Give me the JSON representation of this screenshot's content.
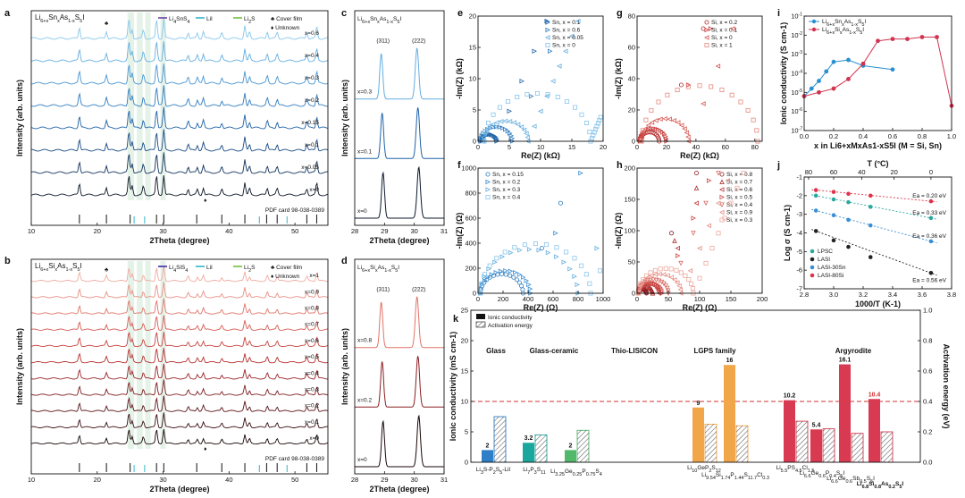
{
  "chart_data": [
    {
      "panel": "a",
      "type": "line",
      "title": "Li6+xSnxAs1-xS5I",
      "legend": [
        "Li4SnS4",
        "LiI",
        "Li2S",
        "Cover film",
        "Unknown"
      ],
      "xlabel": "2Theta (degree)",
      "ylabel": "Intensity (arb. units)",
      "xlim": [
        10,
        55
      ],
      "xticks": [
        10,
        20,
        30,
        40,
        50
      ],
      "series_labels": [
        "x=0",
        "x=0.05",
        "x=0.1",
        "x=0.15",
        "x=0.2",
        "x=0.3",
        "x=0.4",
        "x=0.6"
      ],
      "reference": "PDF card 98-038-0389",
      "colors": [
        "#0a1626",
        "#10335e",
        "#174a86",
        "#1f62a8",
        "#2f7cc0",
        "#4795d2",
        "#63aee0",
        "#86c6ec"
      ]
    },
    {
      "panel": "b",
      "type": "line",
      "title": "Li6+xSixAs1-xS5I",
      "legend": [
        "Li4SiS4",
        "LiI",
        "Li2S",
        "Cover film",
        "Unknown"
      ],
      "xlabel": "2Theta (degree)",
      "ylabel": "Intensity (arb. units)",
      "xlim": [
        10,
        55
      ],
      "xticks": [
        10,
        20,
        30,
        40,
        50
      ],
      "series_labels": [
        "x=0",
        "x=0.1",
        "x=0.2",
        "x=0.3",
        "x=0.4",
        "x=0.5",
        "x=0.6",
        "x=0.7",
        "x=0.8",
        "x=0.9",
        "x=1"
      ],
      "reference": "PDF card 98-038-0389",
      "colors": [
        "#180506",
        "#3a0d10",
        "#5c1418",
        "#7c1c20",
        "#9b2428",
        "#b4302f",
        "#c8443e",
        "#d65a52",
        "#e07468",
        "#e98f84",
        "#f0aaa0"
      ]
    },
    {
      "panel": "c",
      "type": "line",
      "title": "Li6+xSnxAs1-xS5I",
      "xlabel": "2Theta (degree)",
      "ylabel": "Intensity (arb. units)",
      "xlim": [
        28,
        31
      ],
      "xticks": [
        28,
        29,
        30,
        31
      ],
      "peaks": [
        "(311)",
        "(222)"
      ],
      "series_labels": [
        "x=0",
        "x=0.1",
        "x=0.3"
      ]
    },
    {
      "panel": "d",
      "type": "line",
      "title": "Li6+xSixAs1-xS5I",
      "xlabel": "2Theta (degree)",
      "ylabel": "Intensity (arb. units)",
      "xlim": [
        28,
        31
      ],
      "xticks": [
        28,
        29,
        30,
        31
      ],
      "peaks": [
        "(311)",
        "(222)"
      ],
      "series_labels": [
        "x=0",
        "x=0.2",
        "x=0.8"
      ]
    },
    {
      "panel": "e",
      "type": "scatter",
      "xlabel": "Re(Z) (kΩ)",
      "ylabel": "-Im(Z) (kΩ)",
      "xlim": [
        0,
        20
      ],
      "ylim": [
        0,
        20
      ],
      "xticks": [
        0,
        5,
        10,
        15,
        20
      ],
      "yticks": [
        0,
        5,
        10,
        15,
        20
      ],
      "legend": [
        "Sn, x = 0.1",
        "Sn, x = 0.6",
        "Sn, x = 0.05",
        "Sn, x = 0"
      ]
    },
    {
      "panel": "f",
      "type": "scatter",
      "xlabel": "Re(Z) (Ω)",
      "ylabel": "-Im(Z) (Ω)",
      "xlim": [
        0,
        1000
      ],
      "ylim": [
        0,
        1000
      ],
      "xticks": [
        0,
        200,
        400,
        600,
        800,
        1000
      ],
      "yticks": [
        0,
        200,
        400,
        600,
        800,
        1000
      ],
      "legend": [
        "Sn, x = 0.15",
        "Sn, x = 0.2",
        "Sn, x = 0.3",
        "Sn, x = 0.4"
      ]
    },
    {
      "panel": "g",
      "type": "scatter",
      "xlabel": "Re(Z) (kΩ)",
      "ylabel": "-Im(Z) (kΩ)",
      "xlim": [
        0,
        85
      ],
      "ylim": [
        0,
        80
      ],
      "xticks": [
        0,
        20,
        40,
        60,
        80
      ],
      "yticks": [
        0,
        20,
        40,
        60,
        80
      ],
      "legend": [
        "Si, x = 0.2",
        "Si, x = 0.1",
        "Si, x = 0",
        "Si, x = 1"
      ]
    },
    {
      "panel": "h",
      "type": "scatter",
      "xlabel": "Re(Z) (Ω)",
      "ylabel": "-Im(Z) (Ω)",
      "xlim": [
        0,
        200
      ],
      "ylim": [
        0,
        200
      ],
      "xticks": [
        0,
        50,
        100,
        150,
        200
      ],
      "yticks": [
        0,
        50,
        100,
        150,
        200
      ],
      "legend": [
        "Si, x = 0.8",
        "Si, x = 0.7",
        "Si, x = 0.6",
        "Si, x = 0.5",
        "Si, x = 0.4",
        "Si, x = 0.9",
        "Si, x = 0.3"
      ]
    },
    {
      "panel": "i",
      "type": "line",
      "xlabel": "x in Li6+xMxAs1-xS5I (M = Si, Sn)",
      "ylabel": "Ionic conductivity (S cm-1)",
      "xlim": [
        0,
        1
      ],
      "xticks": [
        "0.0",
        "0.2",
        "0.4",
        "0.6",
        "0.8",
        "1.0"
      ],
      "yticks": [
        "10-7",
        "10-6",
        "10-5",
        "10-4",
        "10-3",
        "10-2",
        "10-1"
      ],
      "series": [
        {
          "name": "Li6+xSnxAs1-xS5I",
          "color": "#2a8fd0",
          "x": [
            0,
            0.05,
            0.1,
            0.15,
            0.2,
            0.3,
            0.4,
            0.6
          ],
          "y_log": [
            -5.2,
            -4.8,
            -4.4,
            -3.9,
            -3.4,
            -3.3,
            -3.6,
            -3.8
          ]
        },
        {
          "name": "Li6+xSixAs1-xS5I",
          "color": "#d0334f",
          "x": [
            0,
            0.1,
            0.2,
            0.3,
            0.4,
            0.5,
            0.6,
            0.7,
            0.8,
            0.9,
            1.0
          ],
          "y_log": [
            -5.2,
            -5.0,
            -4.8,
            -4.3,
            -3.5,
            -2.3,
            -2.2,
            -2.2,
            -2.1,
            -2.1,
            -5.7
          ]
        }
      ]
    },
    {
      "panel": "j",
      "type": "line",
      "xlabel": "1000/T (K-1)",
      "ylabel": "Log σ (S cm-1)",
      "top_xlabel": "T (°C)",
      "xlim": [
        2.8,
        3.8
      ],
      "xticks": [
        "2.8",
        "3.0",
        "3.2",
        "3.4",
        "3.6",
        "3.8"
      ],
      "top_ticks": [
        "80",
        "60",
        "40",
        "20",
        "0"
      ],
      "yticks": [
        "-7",
        "-6",
        "-5",
        "-4",
        "-3",
        "-2",
        "-1"
      ],
      "series": [
        {
          "name": "LPSC",
          "color": "#2aa8a0",
          "ea": "Ea = 0.33 eV",
          "x": [
            2.88,
            3.0,
            3.1,
            3.25,
            3.66
          ],
          "y": [
            -2.0,
            -2.2,
            -2.35,
            -2.6,
            -3.2
          ]
        },
        {
          "name": "LASI",
          "color": "#222222",
          "ea": "Ea = 0.56 eV",
          "x": [
            2.88,
            3.0,
            3.1,
            3.25,
            3.66
          ],
          "y": [
            -3.9,
            -4.4,
            -4.75,
            -5.3,
            -6.15
          ]
        },
        {
          "name": "LASI-30Sn",
          "color": "#3a8ed4",
          "ea": "Ea = 0.36 eV",
          "x": [
            2.88,
            3.0,
            3.1,
            3.25,
            3.66
          ],
          "y": [
            -2.8,
            -3.05,
            -3.3,
            -3.6,
            -4.45
          ]
        },
        {
          "name": "LASI-80Si",
          "color": "#e0334a",
          "ea": "Ea = 0.20 eV",
          "x": [
            2.88,
            3.0,
            3.1,
            3.25,
            3.66
          ],
          "y": [
            -1.7,
            -1.8,
            -1.9,
            -2.0,
            -2.3
          ]
        }
      ]
    },
    {
      "panel": "k",
      "type": "bar",
      "ylabel": "Ionic conductivity (mS cm-1)",
      "y2label": "Activation energy (eV)",
      "ylim": [
        0,
        25
      ],
      "y2lim": [
        0,
        1.0
      ],
      "yticks": [
        "0",
        "5",
        "10",
        "15",
        "20",
        "25"
      ],
      "y2ticks": [
        "0.0",
        "0.2",
        "0.4",
        "0.6",
        "0.8",
        "1.0"
      ],
      "legend": [
        "Ionic conductivity",
        "Activation energy"
      ],
      "dashed_line": 10,
      "groups": [
        "Glass",
        "Glass-ceramic",
        "Thio-LISICON",
        "LGPS family",
        "Argyrodite"
      ],
      "group_colors": [
        "#2e7fc7",
        "#1aa89e",
        "#52b86a",
        "#f2a64a",
        "#d83a52"
      ],
      "categories": [
        "Li3S-P2S5-LiI",
        "Li7P3S11",
        "Li3.25Ge0.25P0.75S4",
        "Li10GeP2S12",
        "Li9.54Si1.74P1.44S11.7Cl0.3",
        "Li5.5PS4.5Cl1.5",
        "Li6.6Ge0.6P0.4S5I",
        "Li6.6Ge0.6Sb0.5S5I",
        "Li6.8Si0.8As0.2S5I"
      ],
      "cat_group": [
        0,
        1,
        2,
        3,
        3,
        4,
        4,
        4,
        4
      ],
      "values": [
        2,
        3.2,
        2,
        9,
        16,
        10.2,
        5.4,
        16.1,
        10.4
      ],
      "value_labels": [
        "2",
        "3.2",
        "2",
        "9",
        "16",
        "10.2",
        "5.4",
        "16.1",
        "10.4"
      ],
      "activation": [
        0.3,
        0.18,
        0.21,
        0.25,
        0.24,
        0.27,
        0.22,
        0.19,
        0.2
      ]
    }
  ],
  "ref_card": "PDF card 98-038-0389"
}
